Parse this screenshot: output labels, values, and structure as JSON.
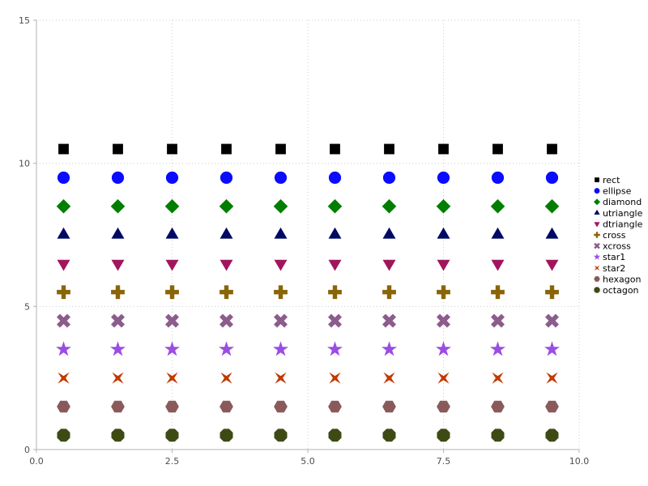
{
  "chart_data": {
    "type": "scatter",
    "title": "",
    "xlabel": "",
    "ylabel": "",
    "xlim": [
      0.0,
      10.0
    ],
    "ylim": [
      0,
      15
    ],
    "x_ticks": [
      0.0,
      2.5,
      5.0,
      7.5,
      10.0
    ],
    "x_tick_labels": [
      "0.0",
      "2.5",
      "5.0",
      "7.5",
      "10.0"
    ],
    "y_ticks": [
      0,
      5,
      10,
      15
    ],
    "y_tick_labels": [
      "0",
      "5",
      "10",
      "15"
    ],
    "grid": "dotted",
    "legend_position": "right",
    "x": [
      0.5,
      1.5,
      2.5,
      3.5,
      4.5,
      5.5,
      6.5,
      7.5,
      8.5,
      9.5
    ],
    "series": [
      {
        "name": "rect",
        "marker": "rect",
        "color": "#000000",
        "y": 10.5
      },
      {
        "name": "ellipse",
        "marker": "ellipse",
        "color": "#0b0bff",
        "y": 9.5
      },
      {
        "name": "diamond",
        "marker": "diamond",
        "color": "#007e00",
        "y": 8.5
      },
      {
        "name": "utriangle",
        "marker": "utriangle",
        "color": "#000a64",
        "y": 7.5
      },
      {
        "name": "dtriangle",
        "marker": "dtriangle",
        "color": "#a1155e",
        "y": 6.5
      },
      {
        "name": "cross",
        "marker": "cross",
        "color": "#8a6508",
        "y": 5.5
      },
      {
        "name": "xcross",
        "marker": "xcross",
        "color": "#8c5c8c",
        "y": 4.5
      },
      {
        "name": "star1",
        "marker": "star1",
        "color": "#9b4de3",
        "y": 3.5
      },
      {
        "name": "star2",
        "marker": "star2",
        "color": "#c23a00",
        "y": 2.5
      },
      {
        "name": "hexagon",
        "marker": "hexagon",
        "color": "#8a5a5a",
        "y": 1.5
      },
      {
        "name": "octagon",
        "marker": "octagon",
        "color": "#3d4a14",
        "y": 0.5
      }
    ]
  }
}
